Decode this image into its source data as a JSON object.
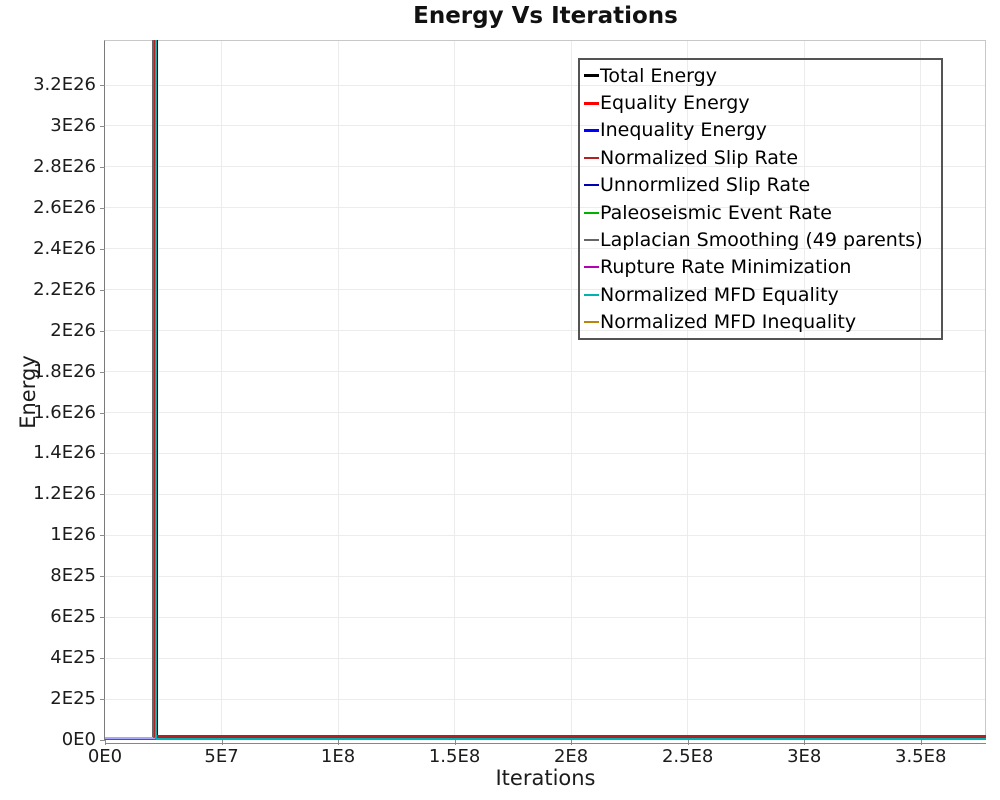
{
  "colors": {
    "background": "#ffffff",
    "grid": "#ececec",
    "frame_dark": "#7a7a7a",
    "frame_light": "#c8c8c8",
    "tick": "#8c8c8c",
    "text": "#1c1c1c",
    "legend_border": "#545454"
  },
  "chart_data": {
    "type": "line",
    "title": "Energy Vs Iterations",
    "xlabel": "Iterations",
    "ylabel": "Energy",
    "xlim": [
      0,
      378000000
    ],
    "ylim": [
      0,
      3.42e+26
    ],
    "grid": true,
    "legend_position": "top-right",
    "description": "Simulated-annealing energy components vs iterations. All energy series start off-scale high and drop almost vertically to ~0 at about 2.2E7 iterations, then stay near zero through ~3.78E8 iterations. Inequality Energy and Normalized MFD Inequality remain ~0 for the whole run.",
    "x_ticks": [
      {
        "value": 0,
        "label": "0E0"
      },
      {
        "value": 50000000,
        "label": "5E7"
      },
      {
        "value": 100000000,
        "label": "1E8"
      },
      {
        "value": 150000000,
        "label": "1.5E8"
      },
      {
        "value": 200000000,
        "label": "2E8"
      },
      {
        "value": 250000000,
        "label": "2.5E8"
      },
      {
        "value": 300000000,
        "label": "3E8"
      },
      {
        "value": 350000000,
        "label": "3.5E8"
      }
    ],
    "y_ticks": [
      {
        "value": 0,
        "label": "0E0"
      },
      {
        "value": 2e+25,
        "label": "2E25"
      },
      {
        "value": 4e+25,
        "label": "4E25"
      },
      {
        "value": 6e+25,
        "label": "6E25"
      },
      {
        "value": 8e+25,
        "label": "8E25"
      },
      {
        "value": 1e+26,
        "label": "1E26"
      },
      {
        "value": 1.2e+26,
        "label": "1.2E26"
      },
      {
        "value": 1.4e+26,
        "label": "1.4E26"
      },
      {
        "value": 1.6e+26,
        "label": "1.6E26"
      },
      {
        "value": 1.8e+26,
        "label": "1.8E26"
      },
      {
        "value": 2e+26,
        "label": "2E26"
      },
      {
        "value": 2.2e+26,
        "label": "2.2E26"
      },
      {
        "value": 2.4e+26,
        "label": "2.4E26"
      },
      {
        "value": 2.6e+26,
        "label": "2.6E26"
      },
      {
        "value": 2.8e+26,
        "label": "2.8E26"
      },
      {
        "value": 3e+26,
        "label": "3E26"
      },
      {
        "value": 3.2e+26,
        "label": "3.2E26"
      }
    ],
    "series": [
      {
        "name": "Total Energy",
        "color": "#000000",
        "line_width": 3,
        "plot_opacity": 1,
        "points": [
          [
            22300000,
            3.42e+26
          ],
          [
            22300000,
            1e+24
          ],
          [
            378000000,
            1e+24
          ]
        ]
      },
      {
        "name": "Equality Energy",
        "color": "#ff0000",
        "line_width": 3,
        "plot_opacity": 1,
        "points": [
          [
            21700000,
            3.42e+26
          ],
          [
            21700000,
            1.7e+24
          ],
          [
            378000000,
            1.7e+24
          ]
        ]
      },
      {
        "name": "Inequality Energy",
        "color": "#0000ff",
        "line_width": 3,
        "plot_opacity": 0.35,
        "points": [
          [
            0,
            7e+23
          ],
          [
            378000000,
            7e+23
          ]
        ]
      },
      {
        "name": "Normalized Slip Rate",
        "color": "#b22222",
        "line_width": 1.5,
        "plot_opacity": 1,
        "points": [
          [
            21200000,
            3.42e+26
          ],
          [
            21200000,
            1.6e+24
          ],
          [
            378000000,
            1.6e+24
          ]
        ]
      },
      {
        "name": "Unnormlized Slip Rate",
        "color": "#0000b2",
        "line_width": 1.5,
        "plot_opacity": 1,
        "points": [
          [
            21700000,
            3.42e+26
          ],
          [
            21700000,
            1.1e+24
          ],
          [
            378000000,
            1.1e+24
          ]
        ]
      },
      {
        "name": "Paleoseismic Event Rate",
        "color": "#00b200",
        "line_width": 1.5,
        "plot_opacity": 1,
        "points": [
          [
            21700000,
            3.42e+26
          ],
          [
            21700000,
            1.2e+24
          ],
          [
            378000000,
            1.2e+24
          ]
        ]
      },
      {
        "name": "Laplacian Smoothing (49 parents)",
        "color": "#666666",
        "line_width": 1.5,
        "plot_opacity": 1,
        "points": [
          [
            20650000,
            3.42e+26
          ],
          [
            20650000,
            1.3e+24
          ],
          [
            378000000,
            1.3e+24
          ]
        ]
      },
      {
        "name": "Rupture Rate Minimization",
        "color": "#b200b2",
        "line_width": 1.5,
        "plot_opacity": 1,
        "points": [
          [
            21700000,
            3.42e+26
          ],
          [
            21700000,
            9e+23
          ],
          [
            378000000,
            9e+23
          ]
        ]
      },
      {
        "name": "Normalized MFD Equality",
        "color": "#00b2b2",
        "line_width": 2,
        "plot_opacity": 1,
        "points": [
          [
            21700000,
            3.42e+26
          ],
          [
            21700000,
            5e+23
          ],
          [
            378000000,
            5e+23
          ]
        ]
      },
      {
        "name": "Normalized MFD Inequality",
        "color": "#b8860b",
        "line_width": 1.5,
        "plot_opacity": 1,
        "points": [
          [
            0,
            -1.8e+24
          ],
          [
            378000000,
            -1.8e+24
          ]
        ]
      }
    ]
  }
}
